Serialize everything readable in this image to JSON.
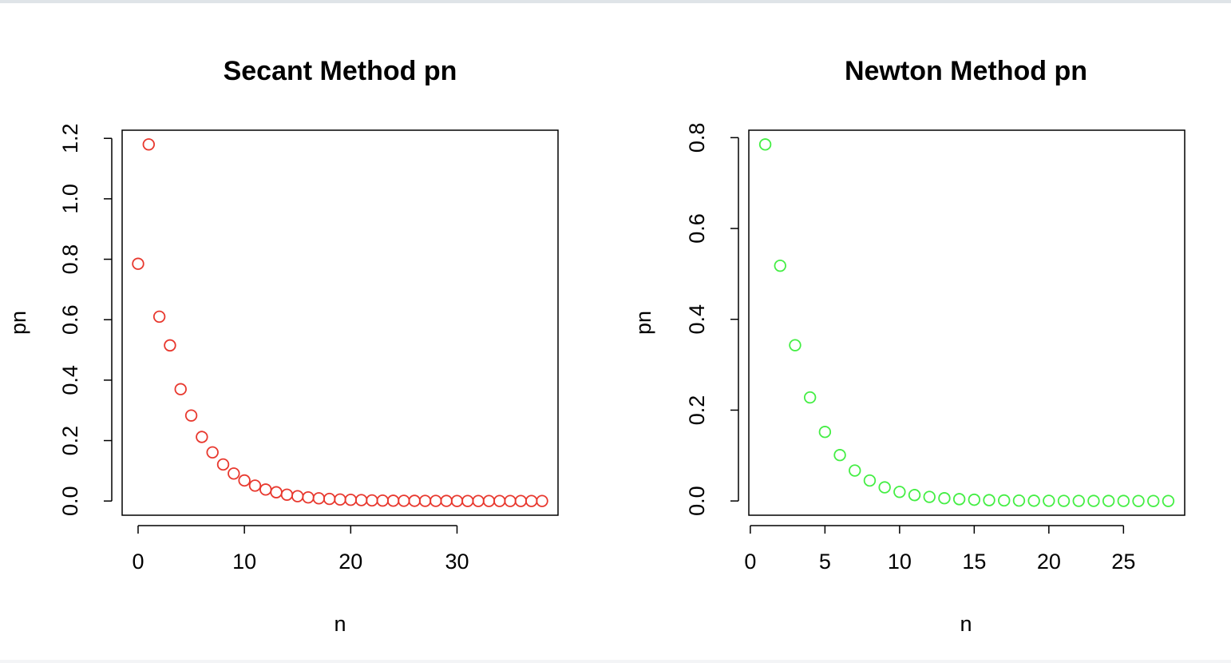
{
  "chart_data": [
    {
      "type": "scatter",
      "title": "Secant Method pn",
      "xlabel": "n",
      "ylabel": "pn",
      "marker_color": "#e8382e",
      "marker": "open-circle",
      "xlim": [
        -1.5,
        39.5
      ],
      "ylim": [
        -0.047,
        1.227
      ],
      "xticks": [
        0,
        10,
        20,
        30
      ],
      "xtick_labels": [
        "0",
        "10",
        "20",
        "30"
      ],
      "yticks": [
        0.0,
        0.2,
        0.4,
        0.6,
        0.8,
        1.0,
        1.2
      ],
      "ytick_labels": [
        "0.0",
        "0.2",
        "0.4",
        "0.6",
        "0.8",
        "1.0",
        "1.2"
      ],
      "x": [
        0,
        1,
        2,
        3,
        4,
        5,
        6,
        7,
        8,
        9,
        10,
        11,
        12,
        13,
        14,
        15,
        16,
        17,
        18,
        19,
        20,
        21,
        22,
        23,
        24,
        25,
        26,
        27,
        28,
        29,
        30,
        31,
        32,
        33,
        34,
        35,
        36,
        37,
        38
      ],
      "y": [
        0.785,
        1.18,
        0.61,
        0.515,
        0.37,
        0.283,
        0.212,
        0.161,
        0.121,
        0.091,
        0.068,
        0.051,
        0.038,
        0.029,
        0.021,
        0.016,
        0.012,
        0.009,
        0.007,
        0.005,
        0.004,
        0.003,
        0.002,
        0.0015,
        0.001,
        0.0008,
        0.0006,
        0.0005,
        0.0004,
        0.0003,
        0.0002,
        0.0002,
        0.0001,
        0.0001,
        0.0001,
        0.0001,
        0.0001,
        0.0001,
        0.0001
      ]
    },
    {
      "type": "scatter",
      "title": "Newton Method pn",
      "xlabel": "n",
      "ylabel": "pn",
      "marker_color": "#44ee44",
      "marker": "open-circle",
      "xlim": [
        -0.1,
        29.1
      ],
      "ylim": [
        -0.0314,
        0.8164
      ],
      "xticks": [
        0,
        5,
        10,
        15,
        20,
        25
      ],
      "xtick_labels": [
        "0",
        "5",
        "10",
        "15",
        "20",
        "25"
      ],
      "yticks": [
        0.0,
        0.2,
        0.4,
        0.6,
        0.8
      ],
      "ytick_labels": [
        "0.0",
        "0.2",
        "0.4",
        "0.6",
        "0.8"
      ],
      "x": [
        1,
        2,
        3,
        4,
        5,
        6,
        7,
        8,
        9,
        10,
        11,
        12,
        13,
        14,
        15,
        16,
        17,
        18,
        19,
        20,
        21,
        22,
        23,
        24,
        25,
        26,
        27,
        28
      ],
      "y": [
        0.785,
        0.518,
        0.343,
        0.228,
        0.152,
        0.101,
        0.067,
        0.045,
        0.03,
        0.02,
        0.013,
        0.009,
        0.006,
        0.004,
        0.0027,
        0.0018,
        0.0012,
        0.0008,
        0.0005,
        0.0004,
        0.0002,
        0.0002,
        0.0001,
        0.0001,
        0.0001,
        0.0,
        0.0,
        0.0
      ]
    }
  ]
}
